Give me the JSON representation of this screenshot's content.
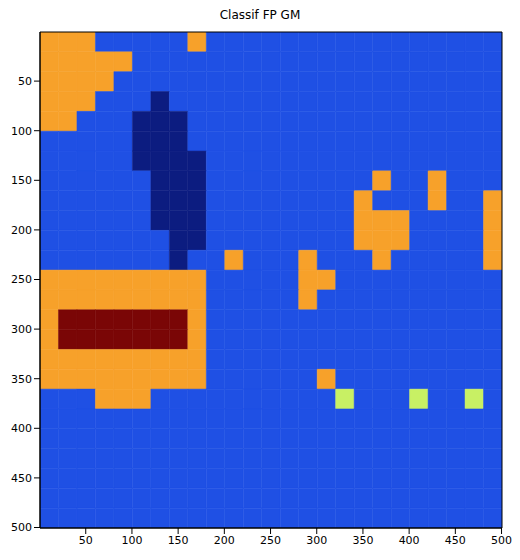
{
  "chart_data": {
    "type": "heatmap",
    "title": "Classif FP GM",
    "xlim": [
      0.5,
      500.5
    ],
    "ylim": [
      0.5,
      500.5
    ],
    "xticks": [
      50,
      100,
      150,
      200,
      250,
      300,
      350,
      400,
      450,
      500
    ],
    "yticks": [
      50,
      100,
      150,
      200,
      250,
      300,
      350,
      400,
      450,
      500
    ],
    "colors": [
      "#0c1c80",
      "#1f50e4",
      "#c8f064",
      "#f7a12a",
      "#7a0606"
    ],
    "cells": [
      [
        3,
        3,
        3,
        1,
        1,
        1,
        1,
        1,
        3,
        1,
        1,
        1,
        1,
        1,
        1,
        1,
        1,
        1,
        1,
        1,
        1,
        1,
        1,
        1,
        1
      ],
      [
        3,
        3,
        3,
        3,
        3,
        1,
        1,
        1,
        1,
        1,
        1,
        1,
        1,
        1,
        1,
        1,
        1,
        1,
        1,
        1,
        1,
        1,
        1,
        1,
        1
      ],
      [
        3,
        3,
        3,
        3,
        1,
        1,
        1,
        1,
        1,
        1,
        1,
        1,
        1,
        1,
        1,
        1,
        1,
        1,
        1,
        1,
        1,
        1,
        1,
        1,
        1
      ],
      [
        3,
        3,
        3,
        1,
        1,
        1,
        0,
        1,
        1,
        1,
        1,
        1,
        1,
        1,
        1,
        1,
        1,
        1,
        1,
        1,
        1,
        1,
        1,
        1,
        1
      ],
      [
        3,
        3,
        1,
        1,
        1,
        0,
        0,
        0,
        1,
        1,
        1,
        1,
        1,
        1,
        1,
        1,
        1,
        1,
        1,
        1,
        1,
        1,
        1,
        1,
        1
      ],
      [
        1,
        1,
        1,
        1,
        1,
        0,
        0,
        0,
        1,
        1,
        1,
        1,
        1,
        1,
        1,
        1,
        1,
        1,
        1,
        1,
        1,
        1,
        1,
        1,
        1
      ],
      [
        1,
        1,
        1,
        1,
        1,
        0,
        0,
        0,
        0,
        1,
        1,
        1,
        1,
        1,
        1,
        1,
        1,
        1,
        1,
        1,
        1,
        1,
        1,
        1,
        1
      ],
      [
        1,
        1,
        1,
        1,
        1,
        1,
        0,
        0,
        0,
        1,
        1,
        1,
        1,
        1,
        1,
        1,
        1,
        1,
        3,
        1,
        1,
        3,
        1,
        1,
        1
      ],
      [
        1,
        1,
        1,
        1,
        1,
        1,
        0,
        0,
        0,
        1,
        1,
        1,
        1,
        1,
        1,
        1,
        1,
        3,
        1,
        1,
        1,
        3,
        1,
        1,
        3
      ],
      [
        1,
        1,
        1,
        1,
        1,
        1,
        0,
        0,
        0,
        1,
        1,
        1,
        1,
        1,
        1,
        1,
        1,
        3,
        3,
        3,
        1,
        1,
        1,
        1,
        3
      ],
      [
        1,
        1,
        1,
        1,
        1,
        1,
        1,
        0,
        0,
        1,
        1,
        1,
        1,
        1,
        1,
        1,
        1,
        3,
        3,
        3,
        1,
        1,
        1,
        1,
        3
      ],
      [
        1,
        1,
        1,
        1,
        1,
        1,
        1,
        0,
        1,
        1,
        3,
        1,
        1,
        1,
        3,
        1,
        1,
        1,
        3,
        1,
        1,
        1,
        1,
        1,
        3
      ],
      [
        3,
        3,
        3,
        3,
        3,
        3,
        3,
        3,
        3,
        1,
        1,
        1,
        1,
        1,
        3,
        3,
        1,
        1,
        1,
        1,
        1,
        1,
        1,
        1,
        1
      ],
      [
        3,
        3,
        3,
        3,
        3,
        3,
        3,
        3,
        3,
        1,
        1,
        1,
        1,
        1,
        3,
        1,
        1,
        1,
        1,
        1,
        1,
        1,
        1,
        1,
        1
      ],
      [
        3,
        4,
        4,
        4,
        4,
        4,
        4,
        4,
        3,
        1,
        1,
        1,
        1,
        1,
        1,
        1,
        1,
        1,
        1,
        1,
        1,
        1,
        1,
        1,
        1
      ],
      [
        3,
        4,
        4,
        4,
        4,
        4,
        4,
        4,
        3,
        1,
        1,
        1,
        1,
        1,
        1,
        1,
        1,
        1,
        1,
        1,
        1,
        1,
        1,
        1,
        1
      ],
      [
        3,
        3,
        3,
        3,
        3,
        3,
        3,
        3,
        3,
        1,
        1,
        1,
        1,
        1,
        1,
        1,
        1,
        1,
        1,
        1,
        1,
        1,
        1,
        1,
        1
      ],
      [
        3,
        3,
        3,
        3,
        3,
        3,
        3,
        3,
        3,
        1,
        1,
        1,
        1,
        1,
        1,
        3,
        1,
        1,
        1,
        1,
        1,
        1,
        1,
        1,
        1
      ],
      [
        1,
        1,
        1,
        3,
        3,
        3,
        1,
        1,
        1,
        1,
        1,
        1,
        1,
        1,
        1,
        1,
        2,
        1,
        1,
        1,
        2,
        1,
        1,
        2,
        1
      ],
      [
        1,
        1,
        1,
        1,
        1,
        1,
        1,
        1,
        1,
        1,
        1,
        1,
        1,
        1,
        1,
        1,
        1,
        1,
        1,
        1,
        1,
        1,
        1,
        1,
        1
      ],
      [
        1,
        1,
        1,
        1,
        1,
        1,
        1,
        1,
        1,
        1,
        1,
        1,
        1,
        1,
        1,
        1,
        1,
        1,
        1,
        1,
        1,
        1,
        1,
        1,
        1
      ],
      [
        1,
        1,
        1,
        1,
        1,
        1,
        1,
        1,
        1,
        1,
        1,
        1,
        1,
        1,
        1,
        1,
        1,
        1,
        1,
        1,
        1,
        1,
        1,
        1,
        1
      ],
      [
        1,
        1,
        1,
        1,
        1,
        1,
        1,
        1,
        1,
        1,
        1,
        1,
        1,
        1,
        1,
        1,
        1,
        1,
        1,
        1,
        1,
        1,
        1,
        1,
        1
      ],
      [
        1,
        1,
        1,
        1,
        1,
        1,
        1,
        1,
        1,
        1,
        1,
        1,
        1,
        1,
        1,
        1,
        1,
        1,
        1,
        1,
        1,
        1,
        1,
        1,
        1
      ],
      [
        1,
        1,
        1,
        1,
        1,
        1,
        1,
        1,
        1,
        1,
        1,
        1,
        1,
        1,
        1,
        1,
        1,
        1,
        1,
        1,
        1,
        1,
        1,
        1,
        1
      ]
    ]
  }
}
